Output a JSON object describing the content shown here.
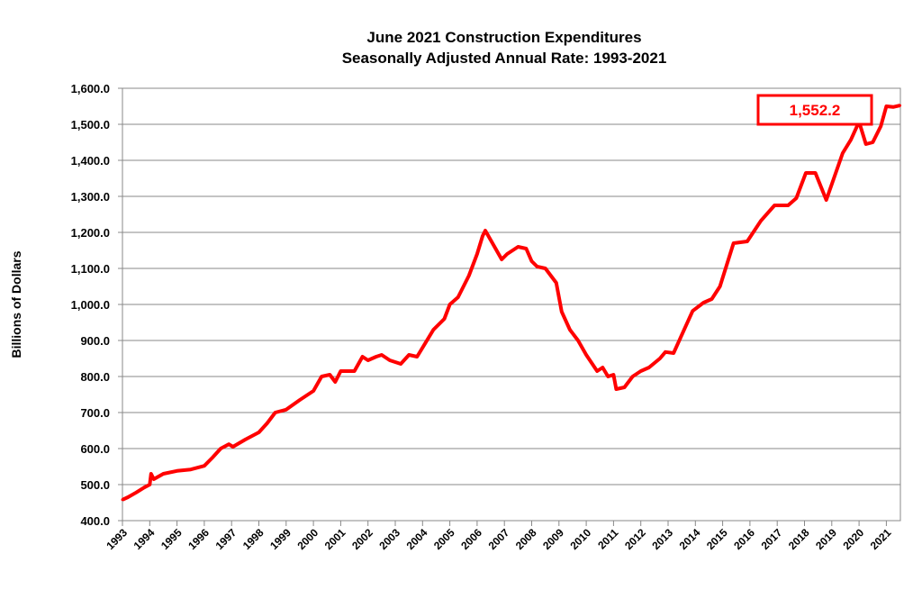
{
  "chart_data": {
    "type": "line",
    "title": "June 2021 Construction Expenditures",
    "subtitle": "Seasonally Adjusted Annual Rate: 1993-2021",
    "xlabel": "",
    "ylabel": "Billions of Dollars",
    "ylim": [
      400,
      1600
    ],
    "xlim": [
      1993,
      2021.5
    ],
    "grid": true,
    "legend": "none",
    "line_color": "#ff0000",
    "yticks": [
      "400.0",
      "500.0",
      "600.0",
      "700.0",
      "800.0",
      "900.0",
      "1,000.0",
      "1,100.0",
      "1,200.0",
      "1,300.0",
      "1,400.0",
      "1,500.0",
      "1,600.0"
    ],
    "xticks": [
      "1993",
      "1994",
      "1995",
      "1996",
      "1997",
      "1998",
      "1999",
      "2000",
      "2001",
      "2002",
      "2003",
      "2004",
      "2005",
      "2006",
      "2007",
      "2008",
      "2009",
      "2010",
      "2011",
      "2012",
      "2013",
      "2014",
      "2015",
      "2016",
      "2017",
      "2018",
      "2019",
      "2020",
      "2021"
    ],
    "annotation": {
      "text": "1,552.2",
      "color": "#ff0000"
    },
    "series": [
      {
        "x": [
          1993.0,
          1993.2,
          1993.5,
          1993.8,
          1994.0,
          1994.05,
          1994.15,
          1994.5,
          1995.0,
          1995.5,
          1996.0,
          1996.3,
          1996.6,
          1996.9,
          1997.05,
          1997.5,
          1998.0,
          1998.3,
          1998.6,
          1999.0,
          1999.5,
          2000.0,
          2000.3,
          2000.6,
          2000.8,
          2001.0,
          2001.5,
          2001.8,
          2002.0,
          2002.3,
          2002.5,
          2002.8,
          2003.0,
          2003.2,
          2003.5,
          2003.8,
          2004.0,
          2004.4,
          2004.8,
          2005.0,
          2005.3,
          2005.7,
          2006.0,
          2006.2,
          2006.3,
          2006.6,
          2006.9,
          2007.1,
          2007.5,
          2007.8,
          2008.0,
          2008.2,
          2008.5,
          2008.9,
          2009.1,
          2009.4,
          2009.7,
          2010.0,
          2010.4,
          2010.6,
          2010.8,
          2011.0,
          2011.1,
          2011.4,
          2011.7,
          2012.0,
          2012.3,
          2012.7,
          2012.9,
          2013.2,
          2013.6,
          2013.9,
          2014.3,
          2014.6,
          2014.9,
          2015.4,
          2015.9,
          2016.4,
          2016.9,
          2017.4,
          2017.7,
          2018.05,
          2018.4,
          2018.8,
          2019.4,
          2019.7,
          2020.0,
          2020.25,
          2020.5,
          2020.8,
          2021.0,
          2021.25,
          2021.5
        ],
        "values": [
          458,
          465,
          478,
          492,
          500,
          530,
          515,
          530,
          538,
          542,
          552,
          575,
          600,
          612,
          605,
          625,
          645,
          670,
          700,
          708,
          735,
          760,
          800,
          805,
          785,
          815,
          815,
          855,
          845,
          855,
          860,
          845,
          840,
          835,
          860,
          855,
          880,
          930,
          960,
          1000,
          1020,
          1080,
          1140,
          1190,
          1205,
          1165,
          1125,
          1140,
          1160,
          1155,
          1120,
          1105,
          1100,
          1060,
          980,
          930,
          900,
          860,
          815,
          825,
          800,
          805,
          765,
          770,
          800,
          815,
          825,
          850,
          868,
          865,
          932,
          982,
          1005,
          1015,
          1050,
          1170,
          1175,
          1232,
          1275,
          1275,
          1295,
          1365,
          1365,
          1290,
          1420,
          1457,
          1507,
          1445,
          1450,
          1495,
          1550,
          1548,
          1552.2
        ]
      }
    ]
  }
}
